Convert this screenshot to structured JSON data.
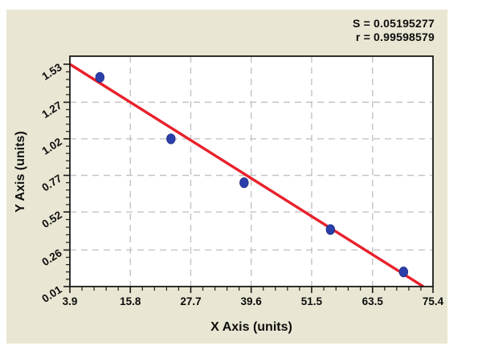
{
  "chart_data": {
    "type": "scatter",
    "title": "",
    "xlabel": "X Axis (units)",
    "ylabel": "Y Axis (units)",
    "annotations": [
      "S = 0.05195277",
      "r = 0.99598579"
    ],
    "x_ticks": [
      3.9,
      15.8,
      27.7,
      39.6,
      51.5,
      63.5,
      75.4
    ],
    "x_tick_labels": [
      "3.9",
      "15.8",
      "27.7",
      "39.6",
      "51.5",
      "63.5",
      "75.4"
    ],
    "y_ticks": [
      0.01,
      0.26,
      0.52,
      0.77,
      1.02,
      1.27,
      1.53
    ],
    "y_tick_labels": [
      "0.01",
      "0.26",
      "0.52",
      "0.77",
      "1.02",
      "1.27",
      "1.53"
    ],
    "xlim": [
      3.9,
      75.4
    ],
    "ylim": [
      0.01,
      1.53
    ],
    "grid": {
      "style": "dashed",
      "vertical_at": [
        15.8,
        27.7,
        39.6,
        51.5,
        63.5
      ],
      "horizontal_at": [
        0.26,
        0.52,
        0.77,
        1.02,
        1.27
      ]
    },
    "minor_ticks_between_majors": 4,
    "legend": "none",
    "series": [
      {
        "name": "standard-points",
        "type": "scatter",
        "points": [
          [
            9.8,
            1.44
          ],
          [
            23.8,
            1.02
          ],
          [
            38.2,
            0.72
          ],
          [
            55.2,
            0.4
          ],
          [
            69.6,
            0.11
          ]
        ]
      },
      {
        "name": "regression-line",
        "type": "line",
        "points": [
          [
            3.9,
            1.53
          ],
          [
            73.5,
            0.01
          ]
        ]
      }
    ],
    "colors": {
      "background": "#e9e6d3",
      "plot_background": "#ffffff",
      "point": "#2b3faa",
      "point_edge": "#1f2d87",
      "regression_line": "#e8212b",
      "grid": "#c3c3c3",
      "axis": "#1a1a1a",
      "text": "#0d0d0d"
    }
  }
}
